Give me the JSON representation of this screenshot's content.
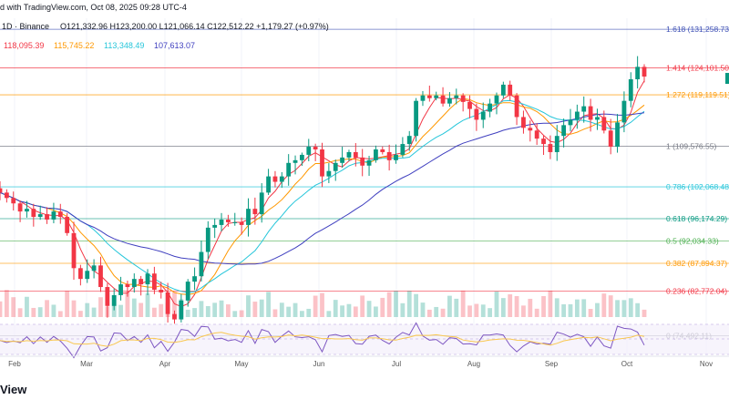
{
  "header": {
    "line1": "d with TradingView.com, Oct 08, 2025 09:28 UTC-4",
    "line2_prefix": "1D · Binance",
    "ohlc": "O121,332.96  H123,200.00  L121,066.14  C122,512.22  +1,179.27 (+0.97%)",
    "ma_values": [
      {
        "text": "118,095.39",
        "color": "#f23645"
      },
      {
        "text": "115,745.22",
        "color": "#ff9800"
      },
      {
        "text": "113,348.49",
        "color": "#26c6da"
      },
      {
        "text": "107,613.07",
        "color": "#3f3fbf"
      }
    ]
  },
  "footer_brand": "View",
  "colors": {
    "up": "#089981",
    "down": "#f23645",
    "ma1": "#f23645",
    "ma2": "#ff9800",
    "ma3": "#26c6da",
    "ma4": "#3f3fbf",
    "rsi": "#7e57c2",
    "rsi_ma": "#f9c74f"
  },
  "chart_data": {
    "type": "candlestick",
    "y_range": [
      70000,
      135000
    ],
    "x_labels": [
      "Feb",
      "Mar",
      "Apr",
      "May",
      "Jun",
      "Jul",
      "Aug",
      "Sep",
      "Oct",
      "Nov"
    ],
    "fib_levels": [
      {
        "label": "1.618 (131,258.73)",
        "value": 131258.73,
        "color": "#3f51b5"
      },
      {
        "label": "1.414 (124,101.50)",
        "value": 124101.5,
        "color": "#f23645"
      },
      {
        "label": "1.272 (119,119.51)",
        "value": 119119.51,
        "color": "#ff9800"
      },
      {
        "label": "1 (109,576.55)",
        "value": 109576.55,
        "color": "#787b86"
      },
      {
        "label": "0.786 (102,068.48)",
        "value": 102068.48,
        "color": "#26c6da"
      },
      {
        "label": "0.618 (96,174.29)",
        "value": 96174.29,
        "color": "#089981"
      },
      {
        "label": "0.5 (92,034.33)",
        "value": 92034.33,
        "color": "#4caf50"
      },
      {
        "label": "0.382 (87,894.37)",
        "value": 87894.37,
        "color": "#ff9800"
      },
      {
        "label": "0.236 (82,772.04)",
        "value": 82772.04,
        "color": "#f23645"
      },
      {
        "label": "0 (74,492.11)",
        "value": 74492.11,
        "color": "#787b86"
      }
    ],
    "close_path": [
      101000,
      100000,
      99000,
      97500,
      98000,
      96500,
      97000,
      96000,
      97500,
      96500,
      93500,
      87000,
      85000,
      86500,
      87500,
      83500,
      80000,
      82000,
      84000,
      83500,
      85000,
      84000,
      86000,
      83000,
      82500,
      78500,
      77500,
      81000,
      84500,
      85500,
      90000,
      94500,
      95000,
      96000,
      95500,
      95500,
      95000,
      98000,
      97000,
      101000,
      104000,
      103000,
      104000,
      106500,
      107000,
      108000,
      109500,
      109000,
      104000,
      105000,
      106500,
      107500,
      108500,
      107500,
      106000,
      107000,
      109000,
      108500,
      107000,
      108000,
      110000,
      111500,
      118000,
      119000,
      118500,
      119000,
      117500,
      118500,
      119000,
      117800,
      116500,
      114500,
      116000,
      117500,
      119000,
      121000,
      119000,
      115000,
      113000,
      112500,
      111000,
      110000,
      108500,
      111500,
      113500,
      114500,
      116000,
      117000,
      114500,
      115000,
      112500,
      109500,
      114000,
      118000,
      122000,
      124300,
      122500
    ]
  }
}
